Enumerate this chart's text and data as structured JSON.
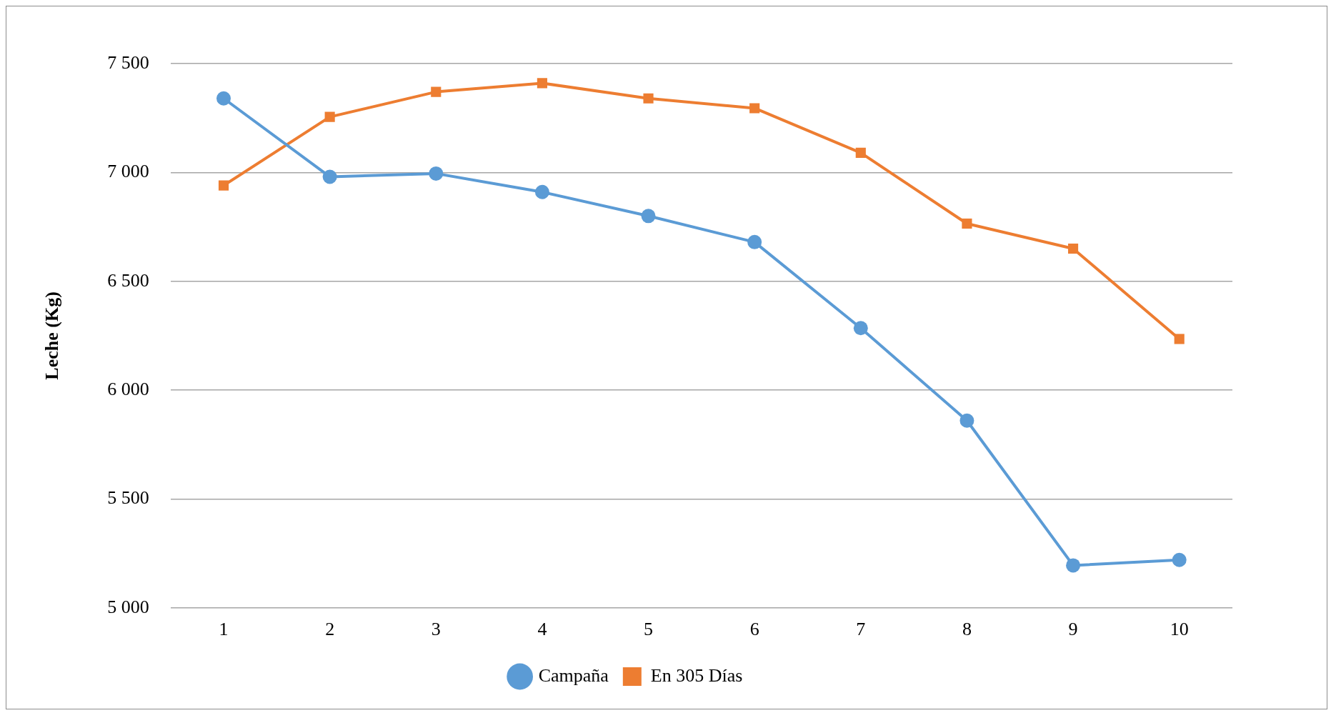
{
  "chart_data": {
    "type": "line",
    "ylabel": "Leche (Kg)",
    "categories": [
      "1",
      "2",
      "3",
      "4",
      "5",
      "6",
      "7",
      "8",
      "9",
      "10"
    ],
    "series": [
      {
        "name": "Campaña",
        "color": "#5b9bd5",
        "marker": "circle",
        "values": [
          7340,
          6980,
          6995,
          6910,
          6800,
          6680,
          6285,
          5860,
          5195,
          5220
        ]
      },
      {
        "name": "En 305 Días",
        "color": "#ed7d31",
        "marker": "square",
        "values": [
          6940,
          7255,
          7370,
          7410,
          7340,
          7295,
          7090,
          6765,
          6650,
          6235
        ]
      }
    ],
    "ylim": [
      5000,
      7500
    ],
    "yticks": [
      {
        "value": 5000,
        "label": "5 000"
      },
      {
        "value": 5500,
        "label": "5 500"
      },
      {
        "value": 6000,
        "label": "6 000"
      },
      {
        "value": 6500,
        "label": "6 500"
      },
      {
        "value": 7000,
        "label": "7 000"
      },
      {
        "value": 7500,
        "label": "7 500"
      }
    ],
    "grid": "y",
    "legend": "bottom",
    "line_style": "solid"
  }
}
